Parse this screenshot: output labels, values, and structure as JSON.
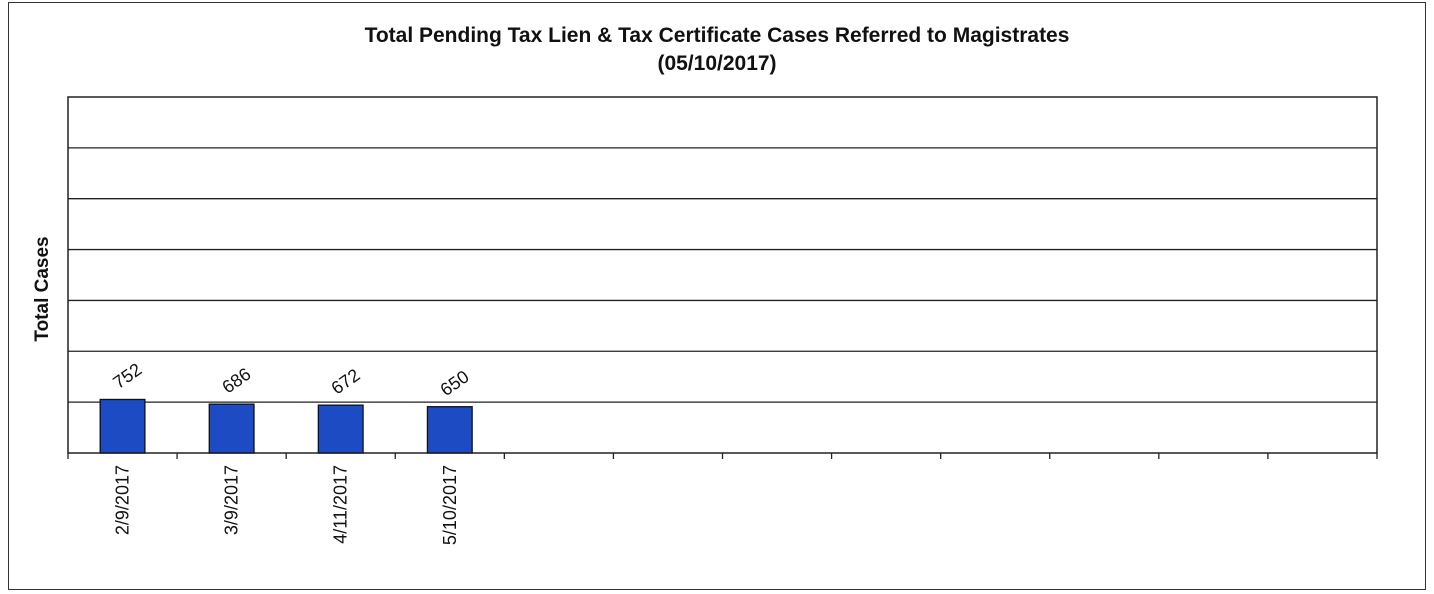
{
  "chart_data": {
    "type": "bar",
    "title": "Total Pending Tax Lien & Tax Certificate Cases Referred to Magistrates",
    "subtitle": "(05/10/2017)",
    "xlabel": "",
    "ylabel": "Total Cases",
    "categories": [
      "2/9/2017",
      "3/9/2017",
      "4/11/2017",
      "5/10/2017",
      "",
      "",
      "",
      "",
      "",
      "",
      "",
      ""
    ],
    "series": [
      {
        "values": [
          752,
          686,
          672,
          650,
          null,
          null,
          null,
          null,
          null,
          null,
          null,
          null
        ]
      }
    ],
    "ylim": [
      0,
      5000
    ],
    "y_tick_step": 714.3,
    "grid": true,
    "legend": "none",
    "bar_color": "#1c4bc4",
    "bar_edge_color": "#111111",
    "data_labels": true
  }
}
